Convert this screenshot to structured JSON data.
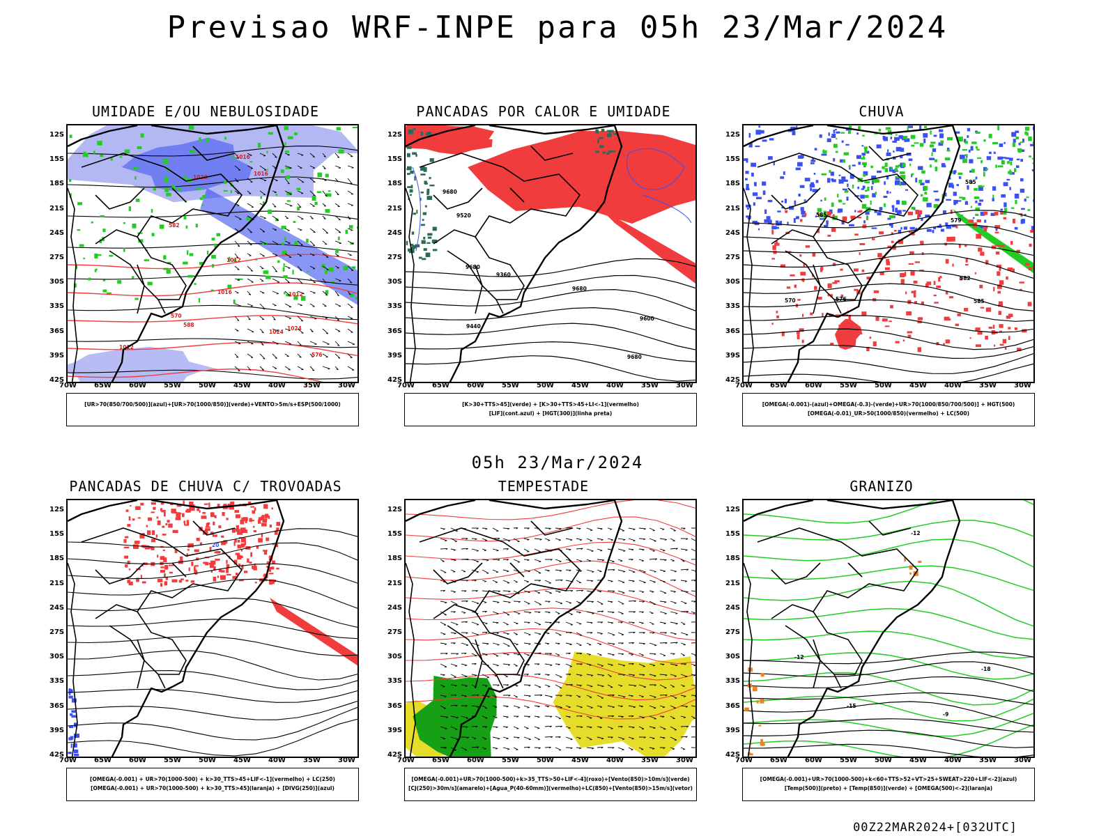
{
  "header": {
    "title": "Previsao WRF-INPE  para 05h 23/Mar/2024",
    "subtitle": "05h 23/Mar/2024",
    "run_info": "00Z22MAR2024+[032UTC]"
  },
  "axes": {
    "lat_labels": [
      "12S",
      "15S",
      "18S",
      "21S",
      "24S",
      "27S",
      "30S",
      "33S",
      "36S",
      "39S",
      "42S"
    ],
    "lon_labels": [
      "70W",
      "65W",
      "60W",
      "55W",
      "50W",
      "45W",
      "40W",
      "35W",
      "30W"
    ]
  },
  "colors": {
    "red": "#f03c3c",
    "blue": "#3a50f0",
    "lightblue": "#9aa0f0",
    "green": "#22cc22",
    "darkgreen": "#2a6a5a",
    "yellow": "#e6dc2a",
    "orange": "#f08020"
  },
  "panels": [
    {
      "title": "UMIDADE E/OU NEBULOSIDADE",
      "legend": [
        "[UR>70(850/700/500)](azul)+[UR>70(1000/850)](verde)+VENTO>5m/s+ESP(500/1000)"
      ],
      "contour_labels": [
        "1012",
        "1012",
        "1012",
        "1016",
        "1020",
        "1016",
        "1024",
        "1016",
        "1024",
        "570",
        "576",
        "582",
        "588"
      ]
    },
    {
      "title": "PANCADAS POR CALOR E UMIDADE",
      "legend": [
        "[K>30+TTS>45](verde) + [K>30+TTS>45+LI<-1](vermelho)",
        "[LIF](cont.azul) + [HGT(300)](linha preta)"
      ],
      "contour_labels": [
        "9680",
        "9680",
        "9680",
        "9680",
        "9600",
        "9520",
        "9440",
        "9360"
      ]
    },
    {
      "title": "CHUVA",
      "legend": [
        "[OMEGA(-0.001)-(azul)+OMEGA(-0.3)-(verde)+UR>70(1000/850/700/500)] + HGT(500)",
        "[OMEGA(-0.01)_UR>50(1000/850)(vermelho) + LC(500)"
      ],
      "contour_labels": [
        "585",
        "585",
        "585",
        "582",
        "579",
        "576",
        "570"
      ]
    },
    {
      "title": "PANCADAS DE CHUVA C/ TROVOADAS",
      "legend": [
        "[OMEGA(-0.001) + UR>70(1000-500) + k>30_TTS>45+LIF<-1](vermelho) + LC(250)",
        "[OMEGA(-0.001) + UR>70(1000-500) + k>30_TTS>45](laranja) + [DIVG(250)](azul)"
      ],
      "contour_labels": [
        "20"
      ]
    },
    {
      "title": "TEMPESTADE",
      "legend": [
        "[OMEGA(-0.001)+UR>70(1000-500)+k>35_TTS>50+LIF<-4](roxo)+[Vento(850)>10m/s](verde)",
        "[CJ(250)>30m/s](amarelo)+[Agua_P(40-60mm)](vermelho)+LC(850)+[Vento(850)>15m/s](vetor)"
      ],
      "contour_labels": []
    },
    {
      "title": "GRANIZO",
      "legend": [
        "[OMEGA(-0.001)+UR>70(1000-500)+k<60+TTS>52+VT>25+SWEAT>220+LIF<-2](azul)",
        "[Temp(500)](preto) + [Temp(850)](verde) + [OMEGA(500)<-2](laranja)"
      ],
      "contour_labels": [
        "-9",
        "-12",
        "-15",
        "-18",
        "-12"
      ]
    }
  ]
}
